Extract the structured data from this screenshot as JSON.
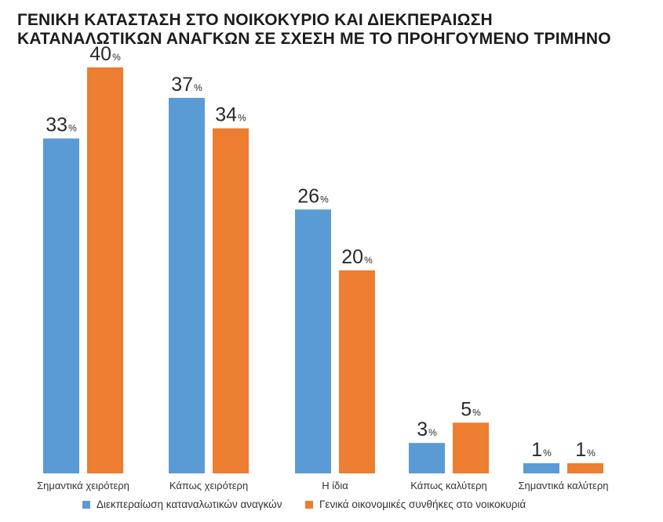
{
  "title_lines": [
    "ΓΕΝΙΚΗ ΚΑΤΑΣΤΑΣΗ ΣΤΟ ΝΟΙΚΟΚΥΡΙΟ ΚΑΙ ΔΙΕΚΠΕΡΑΙΩΣΗ",
    "ΚΑΤΑΝΑΛΩΤΙΚΩΝ ΑΝΑΓΚΩΝ ΣΕ ΣΧΕΣΗ ΜΕ ΤΟ ΠΡΟΗΓΟΥΜΕΝΟ ΤΡΙΜΗΝΟ"
  ],
  "chart_data": {
    "type": "bar",
    "title": "ΓΕΝΙΚΗ ΚΑΤΑΣΤΑΣΗ ΣΤΟ ΝΟΙΚΟΚΥΡΙΟ ΚΑΙ ΔΙΕΚΠΕΡΑΙΩΣΗ ΚΑΤΑΝΑΛΩΤΙΚΩΝ ΑΝΑΓΚΩΝ ΣΕ ΣΧΕΣΗ ΜΕ ΤΟ ΠΡΟΗΓΟΥΜΕΝΟ ΤΡΙΜΗΝΟ",
    "categories": [
      "Σημαντικά χειρότερη",
      "Κάπως χειρότερη",
      "Η ίδια",
      "Κάπως καλύτερη",
      "Σημαντικά καλύτερη"
    ],
    "series": [
      {
        "name": "Διεκπεραίωση καταναλωτικών αναγκών",
        "values": [
          33,
          37,
          26,
          3,
          1
        ],
        "color": "#5b9bd5"
      },
      {
        "name": "Γενικά οικονομικές συνθήκες στο νοικοκυριά",
        "values": [
          40,
          34,
          20,
          5,
          1
        ],
        "color": "#ed7d31"
      }
    ],
    "value_suffix": "%",
    "ylim": [
      0,
      40
    ],
    "grid": false,
    "legend_position": "bottom"
  }
}
